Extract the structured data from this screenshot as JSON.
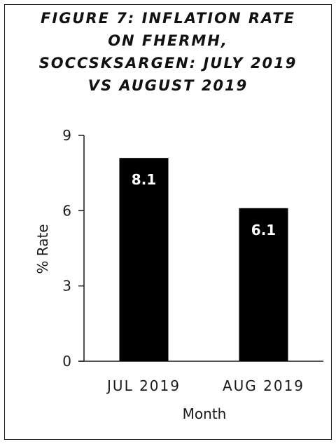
{
  "chart_data": {
    "type": "bar",
    "title_lines": [
      "FIGURE 7: INFLATION RATE",
      "ON FHERMH,",
      "SOCCSKSARGEN: JULY 2019",
      "VS AUGUST 2019"
    ],
    "categories": [
      "JUL 2019",
      "AUG 2019"
    ],
    "values": [
      8.1,
      6.1
    ],
    "data_labels": [
      "8.1",
      "6.1"
    ],
    "xlabel": "Month",
    "ylabel": "% Rate",
    "ylim": [
      0,
      9
    ],
    "yticks": [
      "0",
      "3",
      "6",
      "9"
    ],
    "grid": false,
    "legend": "none",
    "bar_color": "#000000",
    "label_color": "#ffffff"
  }
}
